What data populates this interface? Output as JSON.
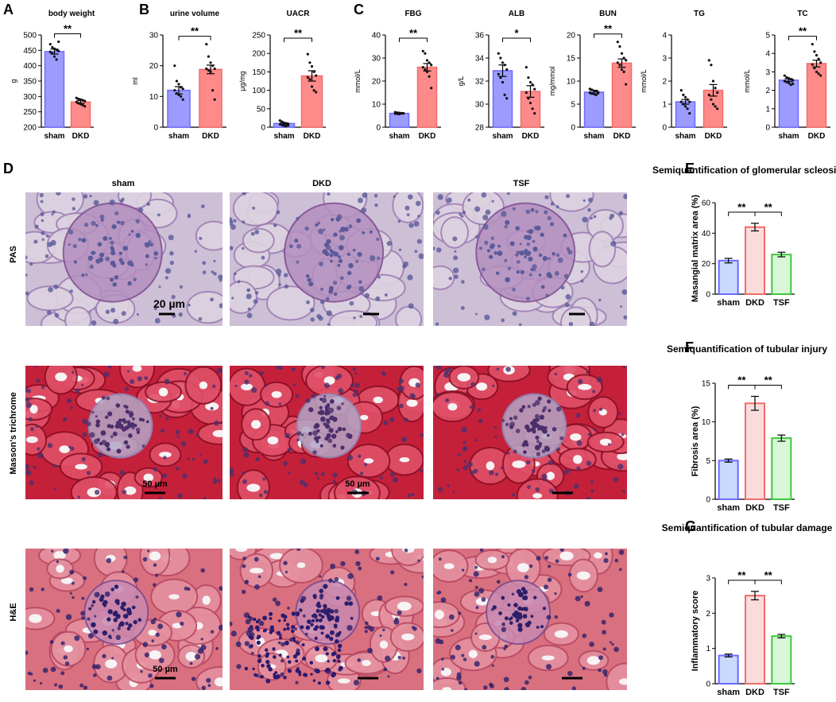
{
  "panel_letters": [
    "A",
    "B",
    "C",
    "D",
    "E",
    "F",
    "G"
  ],
  "micrographs": {
    "columns": [
      "sham",
      "DKD",
      "TSF"
    ],
    "rows": [
      "PAS",
      "Masson's trichrome",
      "H&E"
    ],
    "scale_bars": [
      "20 µm",
      "50 µm",
      "50 µm",
      "50 µm"
    ]
  },
  "colors": {
    "sham": "#6b6bff",
    "dkd": "#f26b6b",
    "tsf": "#3ec93e",
    "pas_bg": "#cdbfd6",
    "masson_bg": "#c5203a",
    "he_bg": "#d9707f"
  },
  "chart_data": [
    {
      "id": "body_weight",
      "type": "bar",
      "title": "body weight",
      "ylabel": "g",
      "categories": [
        "sham",
        "DKD"
      ],
      "values": [
        446,
        282
      ],
      "errors": [
        8,
        5
      ],
      "ylim": [
        200,
        500
      ],
      "yticks": [
        200,
        250,
        300,
        350,
        400,
        450,
        500
      ],
      "significance": [
        "**"
      ],
      "points": [
        [
          470,
          460,
          455,
          452,
          448,
          445,
          440,
          430,
          420,
          478
        ],
        [
          295,
          292,
          290,
          288,
          285,
          282,
          278,
          275,
          272,
          268
        ]
      ]
    },
    {
      "id": "urine_volume",
      "type": "bar",
      "title": "urine volume",
      "ylabel": "ml",
      "categories": [
        "sham",
        "DKD"
      ],
      "values": [
        12,
        18.8
      ],
      "errors": [
        1.2,
        1.4
      ],
      "ylim": [
        0,
        30
      ],
      "yticks": [
        0,
        10,
        20,
        30
      ],
      "significance": [
        "**"
      ],
      "points": [
        [
          20,
          15,
          14,
          13,
          12.5,
          12,
          11,
          10.5,
          10,
          9
        ],
        [
          27,
          23,
          21,
          20,
          19,
          19,
          18.5,
          18,
          12,
          9
        ]
      ]
    },
    {
      "id": "uacr",
      "type": "bar",
      "title": "UACR",
      "ylabel": "μg/mg",
      "categories": [
        "sham",
        "DKD"
      ],
      "values": [
        10,
        139
      ],
      "errors": [
        2,
        14
      ],
      "ylim": [
        0,
        250
      ],
      "yticks": [
        0,
        50,
        100,
        150,
        200,
        250
      ],
      "significance": [
        "**"
      ],
      "points": [
        [
          18,
          15,
          12,
          10,
          9,
          8,
          6,
          4,
          3,
          5
        ],
        [
          198,
          175,
          165,
          150,
          140,
          135,
          130,
          110,
          100,
          95
        ]
      ]
    },
    {
      "id": "fbg",
      "type": "bar",
      "title": "FBG",
      "ylabel": "mmol/L",
      "categories": [
        "sham",
        "DKD"
      ],
      "values": [
        6,
        26
      ],
      "errors": [
        0.3,
        1.6
      ],
      "ylim": [
        0,
        40
      ],
      "yticks": [
        0,
        10,
        20,
        30,
        40
      ],
      "significance": [
        "**"
      ],
      "points": [
        [
          6.5,
          6.3,
          6.2,
          6,
          6,
          5.9,
          5.8,
          5.7,
          6.1,
          6
        ],
        [
          33,
          32,
          29,
          28,
          27,
          26,
          25,
          24,
          22,
          17
        ]
      ]
    },
    {
      "id": "alb",
      "type": "bar",
      "title": "ALB",
      "ylabel": "g/L",
      "categories": [
        "sham",
        "DKD"
      ],
      "values": [
        32.9,
        31.1
      ],
      "errors": [
        0.5,
        0.5
      ],
      "ylim": [
        28,
        36
      ],
      "yticks": [
        28,
        30,
        32,
        34,
        36
      ],
      "significance": [
        "*"
      ],
      "points": [
        [
          34.4,
          34,
          33.6,
          33.4,
          33,
          32.6,
          32.3,
          31.9,
          30.8,
          30.5
        ],
        [
          33.2,
          32.3,
          31.9,
          31.7,
          31.3,
          31,
          30.5,
          30.1,
          29.6,
          29.2
        ]
      ]
    },
    {
      "id": "bun",
      "type": "bar",
      "title": "BUN",
      "ylabel": "mg/mmol",
      "categories": [
        "sham",
        "DKD"
      ],
      "values": [
        7.6,
        13.9
      ],
      "errors": [
        0.4,
        0.9
      ],
      "ylim": [
        0,
        20
      ],
      "yticks": [
        0,
        5,
        10,
        15,
        20
      ],
      "significance": [
        "**"
      ],
      "points": [
        [
          8.3,
          8.1,
          7.9,
          7.8,
          7.6,
          7.5,
          7.3,
          7.2,
          7,
          7.4
        ],
        [
          18.5,
          17.5,
          16,
          15,
          14.5,
          14,
          13.5,
          12.5,
          12,
          9.3
        ]
      ]
    },
    {
      "id": "tg",
      "type": "bar",
      "title": "TG",
      "ylabel": "mmol/L",
      "categories": [
        "sham",
        "DKD"
      ],
      "values": [
        1.1,
        1.6
      ],
      "errors": [
        0.1,
        0.25
      ],
      "ylim": [
        0,
        4
      ],
      "yticks": [
        0,
        1,
        2,
        3,
        4
      ],
      "significance": [],
      "points": [
        [
          1.6,
          1.4,
          1.3,
          1.2,
          1.1,
          1.1,
          1,
          0.9,
          0.8,
          0.6
        ],
        [
          2.9,
          2.7,
          2,
          1.7,
          1.5,
          1.4,
          1.2,
          1,
          0.9,
          0.8
        ]
      ]
    },
    {
      "id": "tc",
      "type": "bar",
      "title": "TC",
      "ylabel": "mmol/L",
      "categories": [
        "sham",
        "DKD"
      ],
      "values": [
        2.55,
        3.45
      ],
      "errors": [
        0.08,
        0.18
      ],
      "ylim": [
        0,
        5
      ],
      "yticks": [
        0,
        1,
        2,
        3,
        4,
        5
      ],
      "significance": [
        "**"
      ],
      "points": [
        [
          2.8,
          2.7,
          2.65,
          2.6,
          2.55,
          2.5,
          2.45,
          2.4,
          2.3,
          2.35
        ],
        [
          4.5,
          4.1,
          3.9,
          3.7,
          3.5,
          3.4,
          3.2,
          3,
          2.9,
          2.8
        ]
      ]
    },
    {
      "id": "glomerular",
      "type": "bar",
      "title": "Semiquantification of glomerular scleosis",
      "ylabel": "Masangial matrix area (%)",
      "categories": [
        "sham",
        "DKD",
        "TSF"
      ],
      "values": [
        22,
        44,
        26
      ],
      "errors": [
        1.5,
        2.5,
        1.5
      ],
      "ylim": [
        0,
        60
      ],
      "yticks": [
        0,
        20,
        40,
        60
      ],
      "significance": [
        "**",
        "**"
      ]
    },
    {
      "id": "tubular_injury",
      "type": "bar",
      "title": "Semiquantification of tubular injury",
      "ylabel": "Fibrosis area (%)",
      "categories": [
        "sham",
        "DKD",
        "TSF"
      ],
      "values": [
        5,
        12.4,
        7.9
      ],
      "errors": [
        0.2,
        0.9,
        0.4
      ],
      "ylim": [
        0,
        15
      ],
      "yticks": [
        0,
        5,
        10,
        15
      ],
      "significance": [
        "**",
        "**"
      ]
    },
    {
      "id": "tubular_damage",
      "type": "bar",
      "title": "Semiquantification of tubular damage",
      "ylabel": "Inflammatory score",
      "categories": [
        "sham",
        "DKD",
        "TSF"
      ],
      "values": [
        0.8,
        2.5,
        1.35
      ],
      "errors": [
        0.04,
        0.12,
        0.05
      ],
      "ylim": [
        0,
        3
      ],
      "yticks": [
        0,
        1,
        2,
        3
      ],
      "significance": [
        "**",
        "**"
      ]
    }
  ]
}
